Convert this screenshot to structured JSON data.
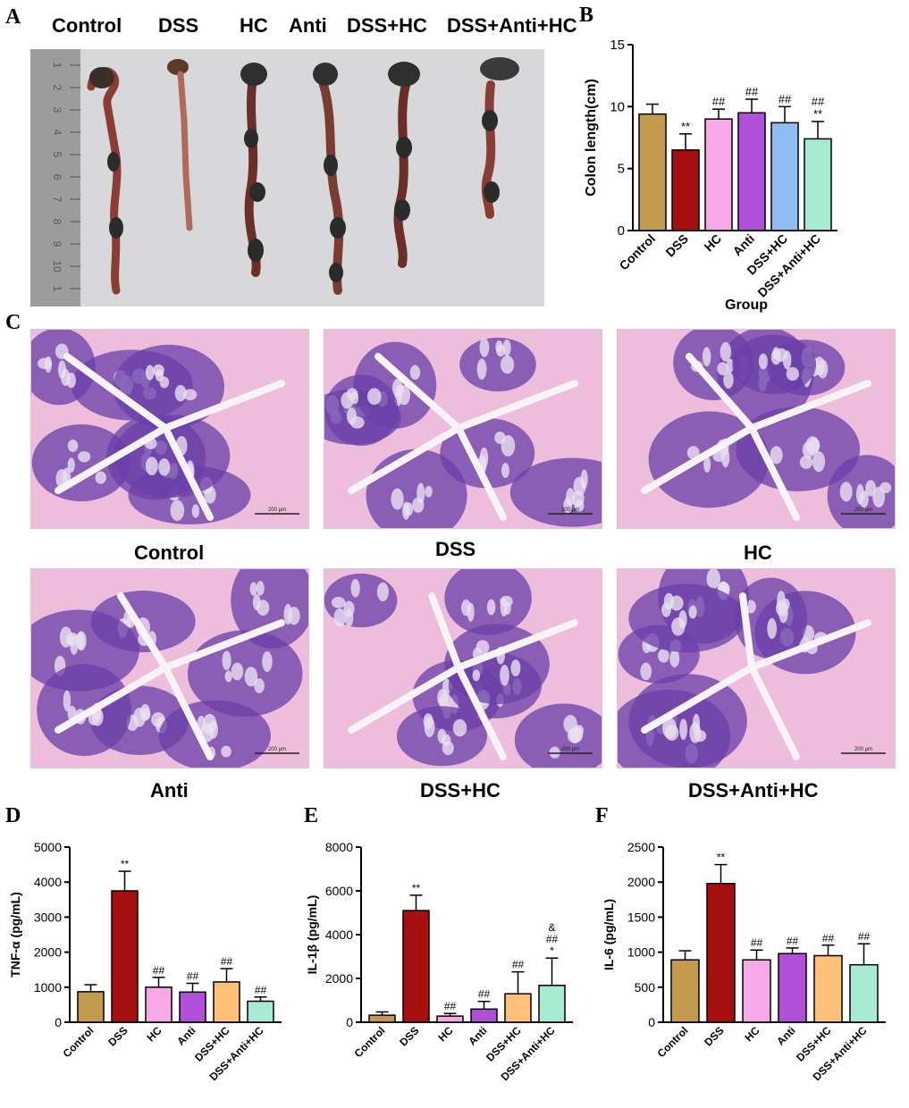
{
  "panels": {
    "a": "A",
    "b": "B",
    "c": "C",
    "d": "D",
    "e": "E",
    "f": "F"
  },
  "photo_labels": [
    "Control",
    "DSS",
    "HC",
    "Anti",
    "DSS+HC",
    "DSS+Anti+HC"
  ],
  "ruler_ticks": [
    "1",
    "2",
    "3",
    "4",
    "5",
    "6",
    "7",
    "8",
    "9",
    "10",
    "1"
  ],
  "histology_labels": [
    "Control",
    "DSS",
    "HC",
    "Anti",
    "DSS+HC",
    "DSS+Anti+HC"
  ],
  "scale_bar_label": "200 μm",
  "colors": {
    "control": "#C39A4E",
    "dss": "#A50F0F",
    "hc": "#F7A8E6",
    "anti": "#B04FD8",
    "dss_hc_b": "#8FBCF2",
    "dss_anti_hc": "#A7EBD3",
    "dss_hc_def": "#FFC07A",
    "tissue_purple": "#6A3FA8",
    "tissue_pink": "#E79AC9"
  },
  "chart_data": [
    {
      "panel": "B",
      "type": "bar",
      "categories": [
        "Control",
        "DSS",
        "HC",
        "Anti",
        "DSS+HC",
        "DSS+Anti+HC"
      ],
      "values": [
        9.4,
        6.5,
        9.0,
        9.5,
        8.7,
        7.4
      ],
      "errors": [
        0.8,
        1.3,
        0.8,
        1.1,
        1.3,
        1.4
      ],
      "annotations": [
        [],
        [
          "**"
        ],
        [
          "##"
        ],
        [
          "##"
        ],
        [
          "##"
        ],
        [
          "**",
          "##"
        ]
      ],
      "ylabel": "Colon length(cm)",
      "xlabel": "Group",
      "ylim": [
        0,
        15
      ],
      "yticks": [
        0,
        5,
        10,
        15
      ]
    },
    {
      "panel": "D",
      "type": "bar",
      "categories": [
        "Control",
        "DSS",
        "HC",
        "Anti",
        "DSS+HC",
        "DSS+Anti+HC"
      ],
      "values": [
        870,
        3750,
        1000,
        860,
        1150,
        600
      ],
      "errors": [
        200,
        560,
        280,
        250,
        380,
        120
      ],
      "annotations": [
        [],
        [
          "**"
        ],
        [
          "##"
        ],
        [
          "##"
        ],
        [
          "##"
        ],
        [
          "##"
        ]
      ],
      "ylabel": "TNF-α (pg/mL)",
      "xlabel": "",
      "ylim": [
        0,
        5000
      ],
      "yticks": [
        0,
        1000,
        2000,
        3000,
        4000,
        5000
      ]
    },
    {
      "panel": "E",
      "type": "bar",
      "categories": [
        "Control",
        "DSS",
        "HC",
        "Anti",
        "DSS+HC",
        "DSS+Anti+HC"
      ],
      "values": [
        320,
        5100,
        280,
        600,
        1300,
        1680
      ],
      "errors": [
        150,
        700,
        120,
        350,
        1000,
        1250
      ],
      "annotations": [
        [],
        [
          "**"
        ],
        [
          "##"
        ],
        [
          "##"
        ],
        [
          "##"
        ],
        [
          "*",
          "##",
          "&"
        ]
      ],
      "ylabel": "IL-1β (pg/mL)",
      "xlabel": "",
      "ylim": [
        0,
        8000
      ],
      "yticks": [
        0,
        2000,
        4000,
        6000,
        8000
      ]
    },
    {
      "panel": "F",
      "type": "bar",
      "categories": [
        "Control",
        "DSS",
        "HC",
        "Anti",
        "DSS+HC",
        "DSS+Anti+HC"
      ],
      "values": [
        890,
        1980,
        890,
        980,
        950,
        820
      ],
      "errors": [
        130,
        270,
        140,
        80,
        150,
        300
      ],
      "annotations": [
        [],
        [
          "**"
        ],
        [
          "##"
        ],
        [
          "##"
        ],
        [
          "##"
        ],
        [
          "##"
        ]
      ],
      "ylabel": "IL-6 (pg/mL)",
      "xlabel": "",
      "ylim": [
        0,
        2500
      ],
      "yticks": [
        0,
        500,
        1000,
        1500,
        2000,
        2500
      ]
    }
  ]
}
